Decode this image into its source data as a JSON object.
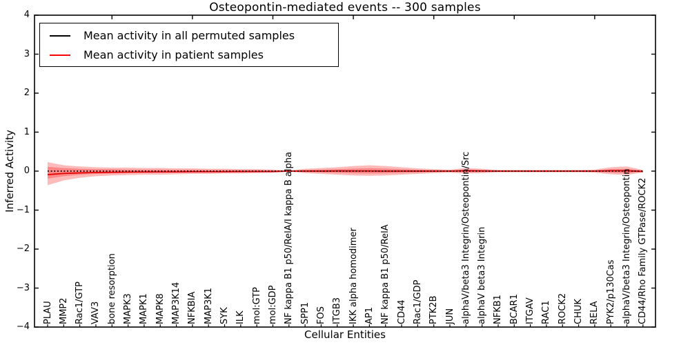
{
  "title": "Osteopontin-mediated events -- 300 samples",
  "legend": {
    "items": [
      {
        "label": "Mean activity in all permuted samples",
        "color": "#000000"
      },
      {
        "label": "Mean activity in patient samples",
        "color": "#ff0000"
      }
    ]
  },
  "axes": {
    "ylabel": "Inferred Activity",
    "xlabel": "Cellular Entities",
    "ytick_labels": [
      "4",
      "3",
      "2",
      "1",
      "0",
      "−1",
      "−2",
      "−3",
      "−4"
    ],
    "ytick_values": [
      4,
      3,
      2,
      1,
      0,
      -1,
      -2,
      -3,
      -4
    ]
  },
  "colors": {
    "band_fill": "#ff0000",
    "band_opacity": 0.27,
    "patient_line": "#e60000",
    "permuted_line": "#000000",
    "spine": "#000000"
  },
  "chart_data": {
    "type": "line",
    "title": "Osteopontin-mediated events -- 300 samples",
    "xlabel": "Cellular Entities",
    "ylabel": "Inferred Activity",
    "ylim": [
      -4,
      4
    ],
    "grid": false,
    "legend_position": "upper left",
    "categories": [
      "PLAU",
      "MMP2",
      "Rac1/GTP",
      "VAV3",
      "bone resorption",
      "MAPK3",
      "MAPK1",
      "MAPK8",
      "MAP3K14",
      "NFKBIA",
      "MAP3K1",
      "SYK",
      "ILK",
      "mol:GTP",
      "mol:GDP",
      "NF kappa B1 p50/RelA/I kappa B alpha",
      "SPP1",
      "FOS",
      "ITGB3",
      "IKK alpha homodimer",
      "AP1",
      "NF kappa B1 p50/RelA",
      "CD44",
      "Rac1/GDP",
      "PTK2B",
      "JUN",
      "alphaV/beta3 Integrin/Osteopontin/Src",
      "alphaV beta3 Integrin",
      "NFKB1",
      "BCAR1",
      "ITGAV",
      "RAC1",
      "ROCK2",
      "CHUK",
      "RELA",
      "PYK2/p130Cas",
      "alphaV/beta3 Integrin/Osteopontin",
      "CD44/Rho Family GTPase/ROCK2"
    ],
    "series": [
      {
        "name": "Mean activity in all permuted samples",
        "style": "dotted",
        "color": "#000000",
        "values": [
          0,
          0,
          0,
          0,
          0,
          0,
          0,
          0,
          0,
          0,
          0,
          0,
          0,
          0,
          0,
          0,
          0,
          0,
          0,
          0,
          0,
          0,
          0,
          0,
          0,
          0,
          0,
          0,
          0,
          0,
          0,
          0,
          0,
          0,
          0,
          0,
          0,
          0
        ]
      },
      {
        "name": "Mean activity in patient samples",
        "style": "solid",
        "color": "#e60000",
        "values": [
          -0.09,
          -0.06,
          -0.045,
          -0.035,
          -0.03,
          -0.025,
          -0.02,
          -0.02,
          -0.02,
          -0.015,
          -0.015,
          -0.015,
          -0.01,
          -0.01,
          -0.01,
          0,
          0,
          0,
          0.005,
          0.005,
          0.005,
          0,
          0,
          0,
          0,
          0,
          0.01,
          0.005,
          0,
          0,
          0,
          0,
          0,
          0,
          0,
          0.01,
          0.01,
          -0.01
        ]
      }
    ],
    "bands": [
      {
        "name": "outer-spread-band",
        "upper": [
          0.23,
          0.15,
          0.12,
          0.1,
          0.09,
          0.09,
          0.08,
          0.08,
          0.07,
          0.07,
          0.06,
          0.06,
          0.05,
          0.05,
          0.04,
          0.015,
          0.06,
          0.08,
          0.1,
          0.13,
          0.15,
          0.13,
          0.1,
          0.07,
          0.05,
          0.04,
          0.08,
          0.06,
          0.03,
          0.03,
          0.03,
          0.03,
          0.03,
          0.03,
          0.04,
          0.1,
          0.12,
          0.03
        ],
        "lower": [
          -0.36,
          -0.24,
          -0.17,
          -0.13,
          -0.11,
          -0.1,
          -0.09,
          -0.09,
          -0.08,
          -0.07,
          -0.07,
          -0.06,
          -0.06,
          -0.05,
          -0.04,
          -0.015,
          -0.05,
          -0.07,
          -0.09,
          -0.11,
          -0.12,
          -0.11,
          -0.09,
          -0.07,
          -0.05,
          -0.04,
          -0.06,
          -0.05,
          -0.03,
          -0.03,
          -0.03,
          -0.03,
          -0.03,
          -0.03,
          -0.04,
          -0.08,
          -0.1,
          -0.03
        ]
      },
      {
        "name": "inner-spread-band",
        "upper": [
          0.11,
          0.08,
          0.06,
          0.05,
          0.05,
          0.04,
          0.04,
          0.04,
          0.035,
          0.035,
          0.03,
          0.03,
          0.025,
          0.025,
          0.02,
          0.008,
          0.03,
          0.04,
          0.05,
          0.065,
          0.075,
          0.065,
          0.05,
          0.035,
          0.025,
          0.02,
          0.04,
          0.03,
          0.015,
          0.015,
          0.015,
          0.015,
          0.015,
          0.015,
          0.02,
          0.05,
          0.06,
          0.015
        ],
        "lower": [
          -0.19,
          -0.13,
          -0.09,
          -0.07,
          -0.06,
          -0.05,
          -0.05,
          -0.04,
          -0.04,
          -0.035,
          -0.035,
          -0.03,
          -0.03,
          -0.025,
          -0.02,
          -0.008,
          -0.025,
          -0.035,
          -0.045,
          -0.055,
          -0.06,
          -0.055,
          -0.045,
          -0.035,
          -0.025,
          -0.02,
          -0.03,
          -0.025,
          -0.015,
          -0.015,
          -0.015,
          -0.015,
          -0.015,
          -0.015,
          -0.02,
          -0.04,
          -0.05,
          -0.015
        ]
      }
    ]
  }
}
